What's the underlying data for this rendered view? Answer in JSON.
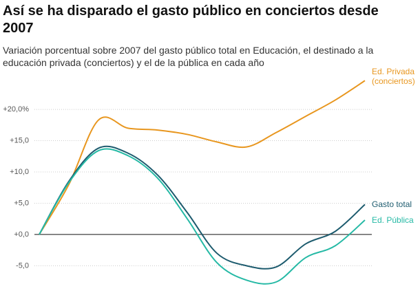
{
  "chart_data": {
    "type": "line",
    "title": "Así se ha disparado el gasto público en conciertos desde 2007",
    "subtitle": "Variación porcentual sobre 2007 del gasto público total en Educación, el destinado a la educación privada (conciertos) y el de la pública en cada año",
    "categories": [
      null,
      null,
      null,
      null,
      null,
      null,
      null,
      null,
      null,
      null,
      null,
      null
    ],
    "series": [
      {
        "name": "Ed. Privada (conciertos)",
        "color": "#e8961e",
        "values": [
          0,
          8.0,
          18.3,
          17.0,
          16.7,
          16.0,
          14.8,
          14.0,
          16.3,
          18.9,
          21.5,
          24.6
        ]
      },
      {
        "name": "Gasto total",
        "color": "#1d5b6e",
        "values": [
          0,
          8.5,
          13.8,
          13.0,
          9.5,
          3.5,
          -3.0,
          -5.0,
          -5.2,
          -1.5,
          0.5,
          4.8
        ]
      },
      {
        "name": "Ed. Pública",
        "color": "#25b9a5",
        "values": [
          0,
          8.3,
          13.4,
          12.6,
          9.0,
          2.5,
          -4.5,
          -7.3,
          -7.6,
          -3.7,
          -1.8,
          2.3
        ]
      }
    ],
    "ylim": [
      -8.7,
      25.4
    ],
    "yticks": [
      {
        "value": -5,
        "label": "-5,0"
      },
      {
        "value": 0,
        "label": "+0,0"
      },
      {
        "value": 5,
        "label": "+5,0"
      },
      {
        "value": 10,
        "label": "+10,0"
      },
      {
        "value": 15,
        "label": "+15,0"
      },
      {
        "value": 20,
        "label": "+20,0%"
      }
    ],
    "grid": true
  }
}
